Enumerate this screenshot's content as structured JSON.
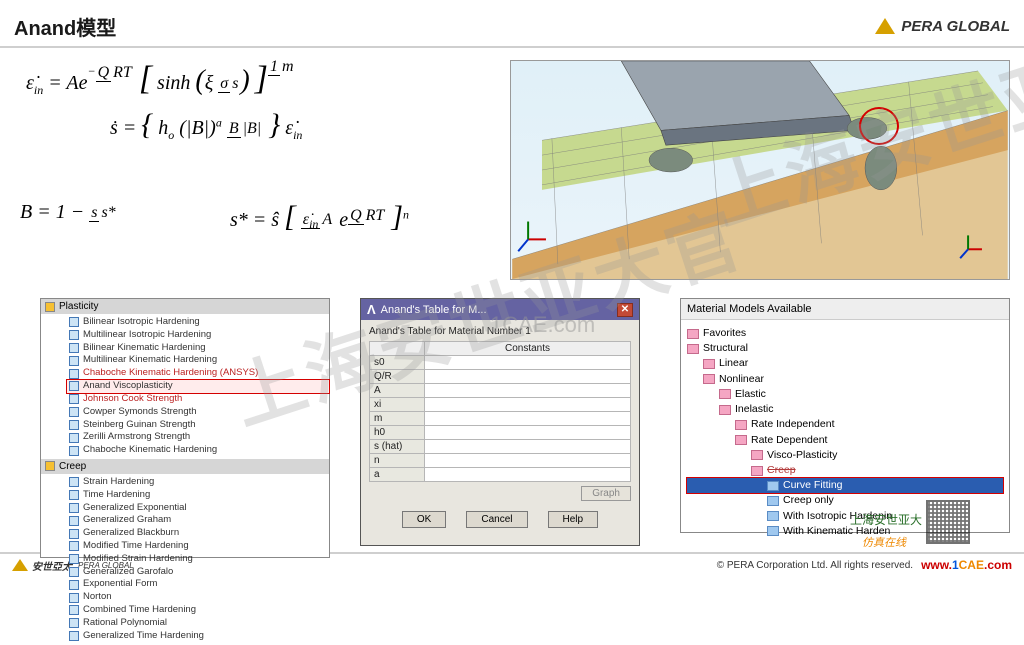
{
  "header": {
    "title": "Anand模型",
    "brand": "PERA GLOBAL"
  },
  "watermarks": {
    "big": "上海安世亚大官",
    "center_small": "1CAE.com"
  },
  "plasticity": {
    "category1": "Plasticity",
    "items1": [
      "Bilinear Isotropic Hardening",
      "Multilinear Isotropic Hardening",
      "Bilinear Kinematic Hardening",
      "Multilinear Kinematic Hardening",
      "Chaboche Kinematic Hardening (ANSYS)",
      "Anand Viscoplasticity",
      "Johnson Cook Strength",
      "Cowper Symonds Strength",
      "Steinberg Guinan Strength",
      "Zerilli Armstrong Strength",
      "Chaboche Kinematic Hardening"
    ],
    "category2": "Creep",
    "items2": [
      "Strain Hardening",
      "Time Hardening",
      "Generalized Exponential",
      "Generalized Graham",
      "Generalized Blackburn",
      "Modified Time Hardening",
      "Modified Strain Hardening",
      "Generalized Garofalo",
      "Exponential Form",
      "Norton",
      "Combined Time Hardening",
      "Rational Polynomial",
      "Generalized Time Hardening"
    ],
    "highlight_index": 5
  },
  "anand_dialog": {
    "title": "Anand's Table  for M...",
    "subtitle": "Anand's Table for Material Number 1",
    "constants_header": "Constants",
    "rows": [
      "s0",
      "Q/R",
      "A",
      "xi",
      "m",
      "h0",
      "s (hat)",
      "n",
      "a"
    ],
    "graph_btn": "Graph",
    "buttons": {
      "ok": "OK",
      "cancel": "Cancel",
      "help": "Help"
    }
  },
  "material_tree": {
    "title": "Material Models Available",
    "nodes": [
      {
        "label": "Favorites",
        "pad": 0,
        "icon": "b"
      },
      {
        "label": "Structural",
        "pad": 0,
        "icon": "b"
      },
      {
        "label": "Linear",
        "pad": 1,
        "icon": "b"
      },
      {
        "label": "Nonlinear",
        "pad": 1,
        "icon": "b"
      },
      {
        "label": "Elastic",
        "pad": 2,
        "icon": "b"
      },
      {
        "label": "Inelastic",
        "pad": 2,
        "icon": "b"
      },
      {
        "label": "Rate Independent",
        "pad": 3,
        "icon": "b"
      },
      {
        "label": "Rate Dependent",
        "pad": 3,
        "icon": "b"
      },
      {
        "label": "Visco-Plasticity",
        "pad": 4,
        "icon": "b"
      },
      {
        "label": "Creep",
        "pad": 4,
        "icon": "b",
        "red": true,
        "strike": true
      },
      {
        "label": "Curve Fitting",
        "pad": 5,
        "icon": "g",
        "hl": true,
        "sel": true
      },
      {
        "label": "Creep only",
        "pad": 5,
        "icon": "g"
      },
      {
        "label": "With Isotropic Hardenin",
        "pad": 5,
        "icon": "g"
      },
      {
        "label": "With Kinematic Harden",
        "pad": 5,
        "icon": "g"
      }
    ]
  },
  "footer": {
    "brand_cn": "安世亞太",
    "brand_sub": "PERA GLOBAL",
    "copyright": "©  PERA Corporation Ltd. All rights reserved.",
    "qr_label": "上海安世亚大",
    "sim_annot": "仿真在线",
    "url": "www.1CAE.com"
  },
  "colors": {
    "accent_red": "#d40000",
    "tri_gold": "#d6a000",
    "dialog_titlebar": "#6563a2"
  },
  "formula_text": {
    "eq1_prefix": "ε̇",
    "eq1_sub": "in",
    "Ae": " = Ae",
    "sinh": "sinh",
    "xi_sigma_s": "ξ σ / s",
    "m_exp": "1/m",
    "s_dot": "ṡ = ",
    "h0": "h",
    "h0_sub": "o",
    "Bpow": "(|B|)",
    "a_exp": "a",
    "B_over_absB": " B / |B|",
    "ein2": " ε̇",
    "B_eq": "B = 1 − ",
    "s_over_sstar": "s / s*",
    "sstar_eq": "s* = ŝ",
    "ein_A": " ε̇_in / A ",
    "eQRT": "e",
    "QRT": "Q/RT",
    "n_exp": "n"
  }
}
